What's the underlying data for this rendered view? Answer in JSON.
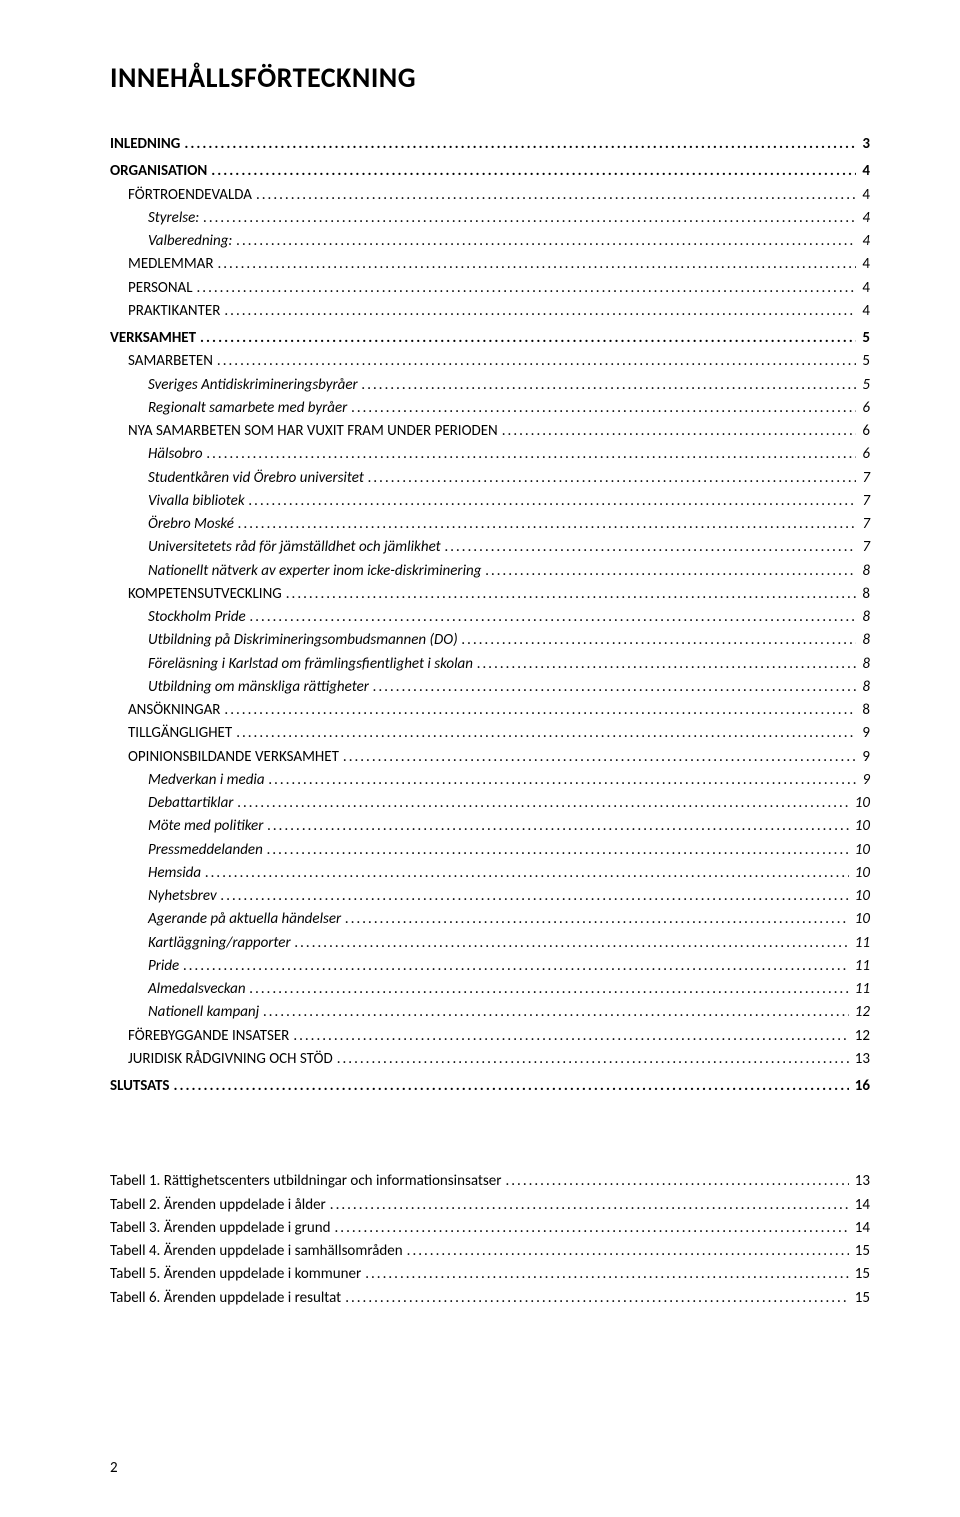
{
  "title": "INNEHÅLLSFÖRTECKNING",
  "toc": [
    {
      "label": "INLEDNING",
      "page": "3",
      "level": 0
    },
    {
      "label": "ORGANISATION",
      "page": "4",
      "level": 0
    },
    {
      "label": "FÖRTROENDEVALDA",
      "page": "4",
      "level": 1,
      "smallcaps": true
    },
    {
      "label": "Styrelse:",
      "page": "4",
      "level": 2
    },
    {
      "label": "Valberedning:",
      "page": "4",
      "level": 2
    },
    {
      "label": "MEDLEMMAR",
      "page": "4",
      "level": 1,
      "smallcaps": true
    },
    {
      "label": "PERSONAL",
      "page": "4",
      "level": 1,
      "smallcaps": true
    },
    {
      "label": "PRAKTIKANTER",
      "page": "4",
      "level": 1,
      "smallcaps": true
    },
    {
      "label": "VERKSAMHET",
      "page": "5",
      "level": 0
    },
    {
      "label": "SAMARBETEN",
      "page": "5",
      "level": 1,
      "smallcaps": true
    },
    {
      "label": "Sveriges Antidiskrimineringsbyråer",
      "page": "5",
      "level": 2
    },
    {
      "label": "Regionalt samarbete med byråer",
      "page": "6",
      "level": 2
    },
    {
      "label": "NYA SAMARBETEN SOM HAR VUXIT FRAM UNDER PERIODEN",
      "page": "6",
      "level": 1,
      "smallcaps": true
    },
    {
      "label": "Hälsobro",
      "page": "6",
      "level": 2
    },
    {
      "label": "Studentkåren vid Örebro universitet",
      "page": "7",
      "level": 2
    },
    {
      "label": "Vivalla bibliotek",
      "page": "7",
      "level": 2
    },
    {
      "label": "Örebro Moské",
      "page": "7",
      "level": 2
    },
    {
      "label": "Universitetets råd för jämställdhet och jämlikhet",
      "page": "7",
      "level": 2
    },
    {
      "label": "Nationellt nätverk av experter inom icke-diskriminering",
      "page": "8",
      "level": 2
    },
    {
      "label": "KOMPETENSUTVECKLING",
      "page": "8",
      "level": 1,
      "smallcaps": true
    },
    {
      "label": "Stockholm Pride",
      "page": "8",
      "level": 2
    },
    {
      "label": "Utbildning på Diskrimineringsombudsmannen (DO)",
      "page": "8",
      "level": 2
    },
    {
      "label": "Föreläsning i Karlstad om främlingsfientlighet i skolan",
      "page": "8",
      "level": 2
    },
    {
      "label": "Utbildning om mänskliga rättigheter",
      "page": "8",
      "level": 2
    },
    {
      "label": "ANSÖKNINGAR",
      "page": "8",
      "level": 1,
      "smallcaps": true
    },
    {
      "label": "TILLGÄNGLIGHET",
      "page": "9",
      "level": 1,
      "smallcaps": true
    },
    {
      "label": "OPINIONSBILDANDE VERKSAMHET",
      "page": "9",
      "level": 1,
      "smallcaps": true
    },
    {
      "label": "Medverkan i media",
      "page": "9",
      "level": 2
    },
    {
      "label": "Debattartiklar",
      "page": "10",
      "level": 2
    },
    {
      "label": "Möte med politiker",
      "page": "10",
      "level": 2
    },
    {
      "label": "Pressmeddelanden",
      "page": "10",
      "level": 2
    },
    {
      "label": "Hemsida",
      "page": "10",
      "level": 2
    },
    {
      "label": "Nyhetsbrev",
      "page": "10",
      "level": 2
    },
    {
      "label": "Agerande på aktuella händelser",
      "page": "10",
      "level": 2
    },
    {
      "label": "Kartläggning/rapporter",
      "page": "11",
      "level": 2
    },
    {
      "label": "Pride",
      "page": "11",
      "level": 2
    },
    {
      "label": "Almedalsveckan",
      "page": "11",
      "level": 2
    },
    {
      "label": "Nationell kampanj",
      "page": "12",
      "level": 2
    },
    {
      "label": "FÖREBYGGANDE INSATSER",
      "page": "12",
      "level": 1,
      "smallcaps": true
    },
    {
      "label": "JURIDISK RÅDGIVNING OCH STÖD",
      "page": "13",
      "level": 1,
      "smallcaps": true
    },
    {
      "label": "SLUTSATS",
      "page": "16",
      "level": 0
    }
  ],
  "lot": [
    {
      "label": "Tabell 1. Rättighetscenters utbildningar och informationsinsatser",
      "page": "13"
    },
    {
      "label": "Tabell 2. Ärenden uppdelade i ålder",
      "page": "14"
    },
    {
      "label": "Tabell 3. Ärenden uppdelade i grund",
      "page": "14"
    },
    {
      "label": "Tabell 4. Ärenden uppdelade i samhällsområden",
      "page": "15"
    },
    {
      "label": "Tabell 5. Ärenden uppdelade i kommuner",
      "page": "15"
    },
    {
      "label": "Tabell 6. Ärenden uppdelade i resultat",
      "page": "15"
    }
  ],
  "pageNumber": "2"
}
